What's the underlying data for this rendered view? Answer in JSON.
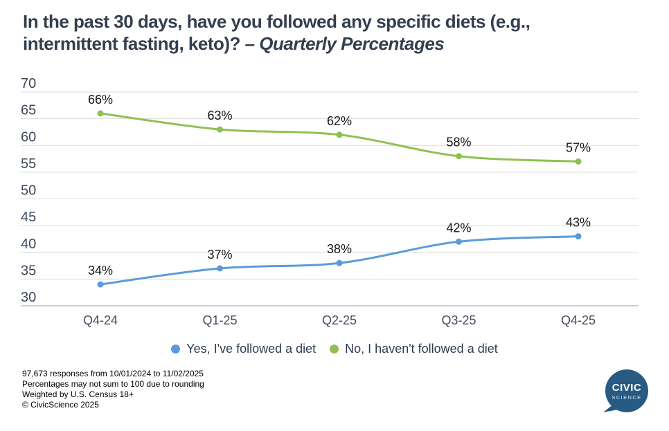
{
  "title": {
    "main": "In the past 30 days, have you followed any specific diets (e.g., intermittent fasting, keto)? ",
    "emphasis": "– Quarterly Percentages"
  },
  "chart_data": {
    "type": "line",
    "categories": [
      "Q4-24",
      "Q1-25",
      "Q2-25",
      "Q3-25",
      "Q4-25"
    ],
    "series": [
      {
        "name": "Yes, I've followed a diet",
        "color": "#5b9bdb",
        "values": [
          34,
          37,
          38,
          42,
          43
        ],
        "labels": [
          "34%",
          "37%",
          "38%",
          "42%",
          "43%"
        ]
      },
      {
        "name": "No, I haven't followed a diet",
        "color": "#8fc152",
        "values": [
          66,
          63,
          62,
          58,
          57
        ],
        "labels": [
          "66%",
          "63%",
          "62%",
          "58%",
          "57%"
        ]
      }
    ],
    "y_ticks": [
      70,
      65,
      60,
      55,
      50,
      45,
      40,
      35,
      30
    ],
    "ylim": [
      30,
      70
    ],
    "grid": "horizontal",
    "legend_position": "bottom",
    "gridline_color": "#dadada",
    "axisline_color": "#b7bec6"
  },
  "footer": {
    "lines": [
      "97,673 responses from 10/01/2024 to 11/02/2025",
      "Percentages may not sum to 100 due to rounding",
      "Weighted by U.S. Census 18+",
      "© CivicScience 2025"
    ]
  },
  "logo": {
    "line1": "CIVIC",
    "line2": "SCIENCE",
    "color": "#275b84"
  }
}
